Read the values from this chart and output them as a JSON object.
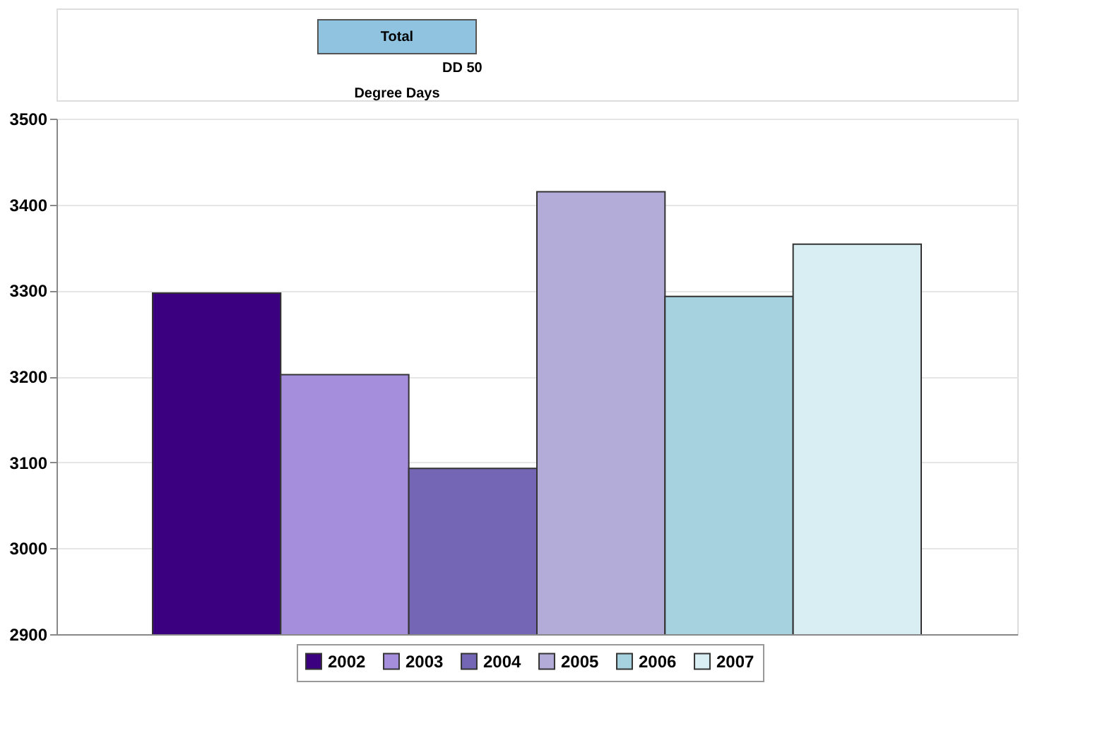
{
  "chart_data": {
    "type": "bar",
    "title": "Degree Days",
    "annotations": [
      "Total",
      "DD 50"
    ],
    "categories": [
      null
    ],
    "series": [
      {
        "name": "2002",
        "color": "#3a0080",
        "values": [
          3297
        ]
      },
      {
        "name": "2003",
        "color": "#a58fdc",
        "values": [
          3202
        ]
      },
      {
        "name": "2004",
        "color": "#7466b4",
        "values": [
          3093
        ]
      },
      {
        "name": "2005",
        "color": "#b3abd8",
        "values": [
          3415
        ]
      },
      {
        "name": "2006",
        "color": "#a6d2e0",
        "values": [
          3293
        ]
      },
      {
        "name": "2007",
        "color": "#d8eef3",
        "values": [
          3354
        ]
      }
    ],
    "ylim": [
      2900,
      3500
    ],
    "yticks": [
      2900,
      3000,
      3100,
      3200,
      3300,
      3400,
      3500
    ],
    "grid": "y",
    "legend": "bottom"
  }
}
